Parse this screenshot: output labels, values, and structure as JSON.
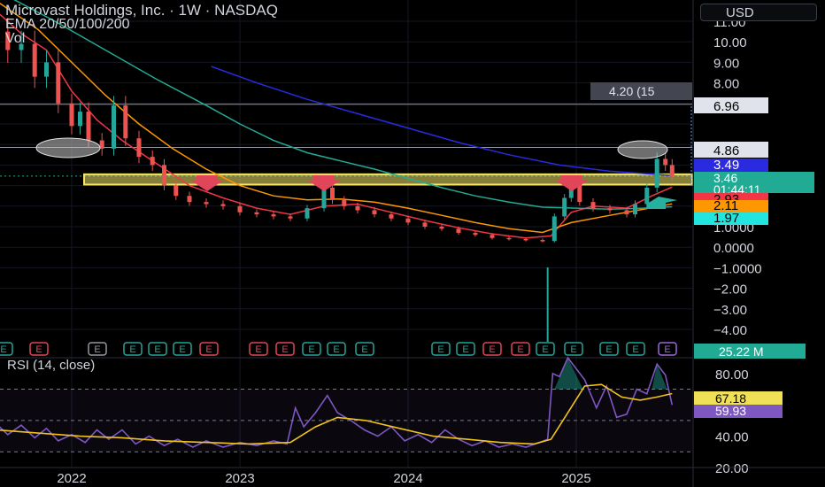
{
  "header": {
    "title": "Microvast Holdings, Inc. · 1W · NASDAQ",
    "indicators": "EMA 20/50/100/200",
    "volume_label": "Vol",
    "currency": "USD"
  },
  "price_axis": {
    "ticks": [
      "11.00",
      "10.00",
      "9.00",
      "8.00",
      "6.96",
      "4.86",
      "3.49",
      "2.93",
      "2.11",
      "1.97",
      "1.0000",
      "0.0000",
      "−1.0000",
      "−2.00",
      "−3.00",
      "−4.00"
    ],
    "tick_values": [
      11,
      10,
      9,
      8,
      7,
      6,
      5,
      4,
      3,
      2,
      1,
      0,
      -1,
      -2,
      -3,
      -4
    ],
    "current_price": "3.46",
    "countdown": "01:44:11",
    "volume_value": "25.22 M"
  },
  "time_axis": {
    "labels": [
      "2022",
      "2023",
      "2024",
      "2025"
    ]
  },
  "colors": {
    "candle_up": "#26a69a",
    "candle_down": "#ef5350",
    "ema20": "#f23645",
    "ema50": "#ff9800",
    "ema100": "#22ab94",
    "ema200": "#2a2ae0",
    "rsi_line": "#7e57c2",
    "rsi_ma": "#f0c419",
    "support_zone": "#f5e66a",
    "price_tag": "#22ab94"
  },
  "annotations": {
    "measure_label": "4.20 (15",
    "earnings_marker": "E",
    "arrow_down_count": 3,
    "circle_count": 2
  },
  "chart_data": [
    {
      "type": "line",
      "title": "Microvast Holdings, Inc. · 1W · NASDAQ",
      "xlabel": "",
      "ylabel": "",
      "ylim": [
        -4.8,
        11.2
      ],
      "x_range": [
        "2021-07",
        "2025-08"
      ],
      "series": [
        {
          "key": "close",
          "values": [
            [
              2021.55,
              10.5
            ],
            [
              2021.62,
              9.6
            ],
            [
              2021.7,
              9.9
            ],
            [
              2021.78,
              8.3
            ],
            [
              2021.85,
              9.0
            ],
            [
              2021.92,
              7.0
            ],
            [
              2022.0,
              5.9
            ],
            [
              2022.05,
              6.6
            ],
            [
              2022.1,
              5.2
            ],
            [
              2022.18,
              4.8
            ],
            [
              2022.25,
              6.9
            ],
            [
              2022.32,
              5.3
            ],
            [
              2022.4,
              4.4
            ],
            [
              2022.48,
              4.0
            ],
            [
              2022.55,
              3.0
            ],
            [
              2022.62,
              2.5
            ],
            [
              2022.7,
              2.2
            ],
            [
              2022.8,
              2.1
            ],
            [
              2022.9,
              2.0
            ],
            [
              2023.0,
              1.7
            ],
            [
              2023.1,
              1.6
            ],
            [
              2023.2,
              1.5
            ],
            [
              2023.3,
              1.4
            ],
            [
              2023.4,
              1.9
            ],
            [
              2023.5,
              2.9
            ],
            [
              2023.55,
              2.3
            ],
            [
              2023.62,
              2.0
            ],
            [
              2023.7,
              1.8
            ],
            [
              2023.8,
              1.6
            ],
            [
              2023.9,
              1.4
            ],
            [
              2024.0,
              1.2
            ],
            [
              2024.1,
              1.0
            ],
            [
              2024.2,
              0.9
            ],
            [
              2024.3,
              0.7
            ],
            [
              2024.4,
              0.6
            ],
            [
              2024.5,
              0.45
            ],
            [
              2024.6,
              0.4
            ],
            [
              2024.7,
              0.35
            ],
            [
              2024.8,
              0.3
            ],
            [
              2024.87,
              1.5
            ],
            [
              2024.93,
              2.4
            ],
            [
              2024.97,
              3.1
            ],
            [
              2025.02,
              2.2
            ],
            [
              2025.1,
              1.9
            ],
            [
              2025.2,
              1.8
            ],
            [
              2025.3,
              1.6
            ],
            [
              2025.35,
              2.1
            ],
            [
              2025.42,
              2.9
            ],
            [
              2025.48,
              4.3
            ],
            [
              2025.53,
              4.0
            ],
            [
              2025.57,
              3.46
            ]
          ]
        },
        {
          "key": "ema20",
          "values": [
            [
              2021.55,
              11.5
            ],
            [
              2021.7,
              10.4
            ],
            [
              2021.85,
              9.6
            ],
            [
              2022.0,
              7.6
            ],
            [
              2022.15,
              6.2
            ],
            [
              2022.3,
              5.2
            ],
            [
              2022.5,
              4.1
            ],
            [
              2022.7,
              3.0
            ],
            [
              2022.9,
              2.4
            ],
            [
              2023.1,
              1.9
            ],
            [
              2023.3,
              1.6
            ],
            [
              2023.5,
              2.0
            ],
            [
              2023.7,
              2.1
            ],
            [
              2023.9,
              1.7
            ],
            [
              2024.1,
              1.3
            ],
            [
              2024.3,
              0.95
            ],
            [
              2024.5,
              0.65
            ],
            [
              2024.7,
              0.45
            ],
            [
              2024.85,
              0.55
            ],
            [
              2024.97,
              1.7
            ],
            [
              2025.1,
              2.0
            ],
            [
              2025.3,
              1.9
            ],
            [
              2025.45,
              2.5
            ],
            [
              2025.57,
              2.93
            ]
          ]
        },
        {
          "key": "ema50",
          "values": [
            [
              2021.55,
              12.0
            ],
            [
              2021.8,
              10.6
            ],
            [
              2022.0,
              9.0
            ],
            [
              2022.2,
              7.4
            ],
            [
              2022.4,
              6.0
            ],
            [
              2022.6,
              4.8
            ],
            [
              2022.8,
              3.8
            ],
            [
              2023.0,
              3.0
            ],
            [
              2023.2,
              2.5
            ],
            [
              2023.4,
              2.3
            ],
            [
              2023.6,
              2.35
            ],
            [
              2023.8,
              2.2
            ],
            [
              2024.0,
              1.9
            ],
            [
              2024.2,
              1.55
            ],
            [
              2024.4,
              1.2
            ],
            [
              2024.6,
              0.9
            ],
            [
              2024.8,
              0.72
            ],
            [
              2024.97,
              1.2
            ],
            [
              2025.2,
              1.55
            ],
            [
              2025.4,
              1.85
            ],
            [
              2025.57,
              2.11
            ]
          ]
        },
        {
          "key": "ema100",
          "values": [
            [
              2021.6,
              12.3
            ],
            [
              2021.9,
              11.0
            ],
            [
              2022.2,
              9.6
            ],
            [
              2022.5,
              8.2
            ],
            [
              2022.8,
              6.9
            ],
            [
              2023.0,
              6.0
            ],
            [
              2023.2,
              5.2
            ],
            [
              2023.4,
              4.6
            ],
            [
              2023.6,
              4.2
            ],
            [
              2023.8,
              3.8
            ],
            [
              2024.0,
              3.35
            ],
            [
              2024.2,
              2.9
            ],
            [
              2024.4,
              2.5
            ],
            [
              2024.6,
              2.2
            ],
            [
              2024.8,
              1.95
            ],
            [
              2025.0,
              1.9
            ],
            [
              2025.2,
              1.85
            ],
            [
              2025.4,
              1.9
            ],
            [
              2025.57,
              1.97
            ]
          ]
        },
        {
          "key": "ema200",
          "values": [
            [
              2022.83,
              8.8
            ],
            [
              2023.1,
              8.0
            ],
            [
              2023.4,
              7.2
            ],
            [
              2023.7,
              6.5
            ],
            [
              2024.0,
              5.8
            ],
            [
              2024.3,
              5.1
            ],
            [
              2024.6,
              4.5
            ],
            [
              2024.9,
              4.0
            ],
            [
              2025.2,
              3.7
            ],
            [
              2025.57,
              3.49
            ]
          ]
        }
      ],
      "horizontal_lines": [
        6.96,
        4.86
      ],
      "support_zone": [
        3.05,
        3.55
      ],
      "volume_spike_x": 2024.83
    },
    {
      "type": "line",
      "title": "RSI (14, close)",
      "xlabel": "",
      "ylabel": "",
      "ylim": [
        15,
        95
      ],
      "y_ticks": [
        20,
        40,
        60,
        80
      ],
      "tick_labels": [
        "20.00",
        "40.00",
        "60.00",
        "80.00"
      ],
      "levels": [
        70,
        50,
        30
      ],
      "series": [
        {
          "key": "rsi",
          "name": "RSI",
          "values": [
            [
              2021.55,
              48
            ],
            [
              2021.62,
              41
            ],
            [
              2021.7,
              47
            ],
            [
              2021.78,
              39
            ],
            [
              2021.85,
              45
            ],
            [
              2021.92,
              37
            ],
            [
              2022.0,
              41
            ],
            [
              2022.08,
              36
            ],
            [
              2022.15,
              44
            ],
            [
              2022.22,
              38
            ],
            [
              2022.3,
              44
            ],
            [
              2022.38,
              35
            ],
            [
              2022.46,
              40
            ],
            [
              2022.55,
              34
            ],
            [
              2022.63,
              38
            ],
            [
              2022.72,
              33
            ],
            [
              2022.8,
              37
            ],
            [
              2022.9,
              33
            ],
            [
              2023.0,
              36
            ],
            [
              2023.1,
              34
            ],
            [
              2023.2,
              37
            ],
            [
              2023.28,
              35
            ],
            [
              2023.33,
              58
            ],
            [
              2023.38,
              46
            ],
            [
              2023.45,
              55
            ],
            [
              2023.52,
              66
            ],
            [
              2023.58,
              55
            ],
            [
              2023.66,
              50
            ],
            [
              2023.74,
              44
            ],
            [
              2023.82,
              40
            ],
            [
              2023.9,
              46
            ],
            [
              2023.98,
              37
            ],
            [
              2024.06,
              41
            ],
            [
              2024.14,
              36
            ],
            [
              2024.22,
              44
            ],
            [
              2024.3,
              38
            ],
            [
              2024.38,
              34
            ],
            [
              2024.46,
              37
            ],
            [
              2024.54,
              33
            ],
            [
              2024.62,
              35
            ],
            [
              2024.7,
              33
            ],
            [
              2024.78,
              36
            ],
            [
              2024.83,
              38
            ],
            [
              2024.86,
              80
            ],
            [
              2024.9,
              78
            ],
            [
              2024.95,
              90
            ],
            [
              2025.0,
              83
            ],
            [
              2025.05,
              76
            ],
            [
              2025.12,
              58
            ],
            [
              2025.18,
              72
            ],
            [
              2025.24,
              52
            ],
            [
              2025.3,
              54
            ],
            [
              2025.36,
              70
            ],
            [
              2025.42,
              67
            ],
            [
              2025.48,
              86
            ],
            [
              2025.53,
              79
            ],
            [
              2025.57,
              59.93
            ]
          ]
        },
        {
          "key": "rsi_ma",
          "name": "RSI-based MA",
          "values": [
            [
              2021.55,
              44
            ],
            [
              2021.8,
              42
            ],
            [
              2022.05,
              40
            ],
            [
              2022.3,
              39
            ],
            [
              2022.55,
              37
            ],
            [
              2022.8,
              36
            ],
            [
              2023.05,
              35
            ],
            [
              2023.3,
              36
            ],
            [
              2023.45,
              46
            ],
            [
              2023.58,
              52
            ],
            [
              2023.75,
              50
            ],
            [
              2023.95,
              45
            ],
            [
              2024.15,
              40
            ],
            [
              2024.35,
              38
            ],
            [
              2024.55,
              36
            ],
            [
              2024.75,
              35
            ],
            [
              2024.85,
              38
            ],
            [
              2024.95,
              55
            ],
            [
              2025.05,
              72
            ],
            [
              2025.15,
              73
            ],
            [
              2025.27,
              65
            ],
            [
              2025.38,
              63
            ],
            [
              2025.48,
              65
            ],
            [
              2025.57,
              67.18
            ]
          ]
        }
      ],
      "current": {
        "rsi_ma": "67.18",
        "rsi": "59.93"
      }
    }
  ]
}
